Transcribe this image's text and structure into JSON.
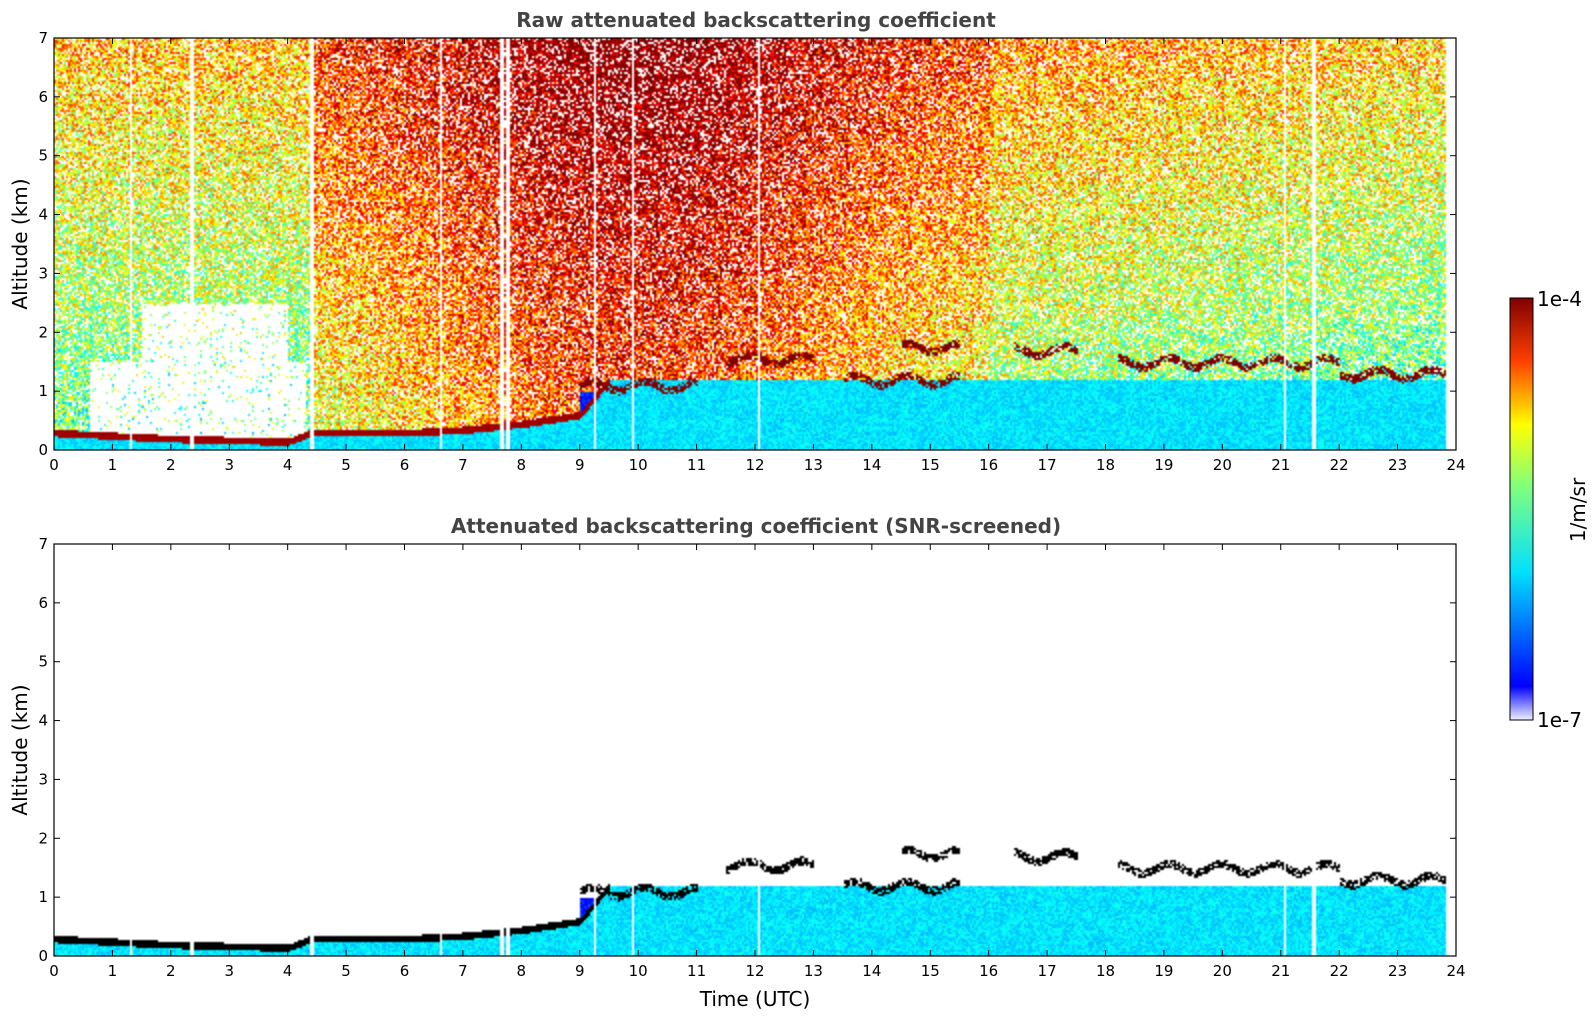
{
  "chart_data": [
    {
      "type": "heatmap",
      "title": "Raw attenuated backscattering coefficient",
      "xlabel": "",
      "ylabel": "Altitude (km)",
      "xlim": [
        0,
        24
      ],
      "ylim": [
        0,
        7
      ],
      "xticks": [
        "0",
        "1",
        "2",
        "3",
        "4",
        "5",
        "6",
        "7",
        "8",
        "9",
        "10",
        "11",
        "12",
        "13",
        "14",
        "15",
        "16",
        "17",
        "18",
        "19",
        "20",
        "21",
        "22",
        "23",
        "24"
      ],
      "yticks": [
        "0",
        "1",
        "2",
        "3",
        "4",
        "5",
        "6",
        "7"
      ],
      "data_end_hour": 23.8,
      "boundary_layer_km": [
        [
          0,
          0.3
        ],
        [
          2,
          0.2
        ],
        [
          4,
          0.15
        ],
        [
          4.4,
          0.3
        ],
        [
          6,
          0.3
        ],
        [
          7,
          0.35
        ],
        [
          8,
          0.45
        ],
        [
          9,
          0.6
        ],
        [
          9.5,
          1.2
        ]
      ],
      "cloud_layers_km": [
        [
          9,
          11,
          1.1
        ],
        [
          11.5,
          13,
          1.55
        ],
        [
          13.5,
          15.5,
          1.2
        ],
        [
          14.5,
          15.5,
          1.75
        ],
        [
          16.4,
          17.5,
          1.7
        ],
        [
          18.2,
          20,
          1.5
        ],
        [
          20,
          22,
          1.5
        ],
        [
          22,
          23.8,
          1.3
        ]
      ],
      "gaps_hour": [
        1.3,
        2.35,
        4.4,
        6.6,
        7.65,
        7.75,
        9.25,
        9.9,
        12.05,
        21.05,
        21.55
      ]
    },
    {
      "type": "heatmap",
      "title": "Attenuated backscattering coefficient (SNR-screened)",
      "xlabel": "Time (UTC)",
      "ylabel": "Altitude (km)",
      "xlim": [
        0,
        24
      ],
      "ylim": [
        0,
        7
      ],
      "xticks": [
        "0",
        "1",
        "2",
        "3",
        "4",
        "5",
        "6",
        "7",
        "8",
        "9",
        "10",
        "11",
        "12",
        "13",
        "14",
        "15",
        "16",
        "17",
        "18",
        "19",
        "20",
        "21",
        "22",
        "23",
        "24"
      ],
      "yticks": [
        "0",
        "1",
        "2",
        "3",
        "4",
        "5",
        "6",
        "7"
      ],
      "data_end_hour": 23.8
    }
  ],
  "colorbar": {
    "label": "1/m/sr",
    "max_label": "1e-4",
    "min_label": "1e-7",
    "scale": "log",
    "range": [
      1e-07,
      0.0001
    ],
    "colormap": "jet"
  }
}
